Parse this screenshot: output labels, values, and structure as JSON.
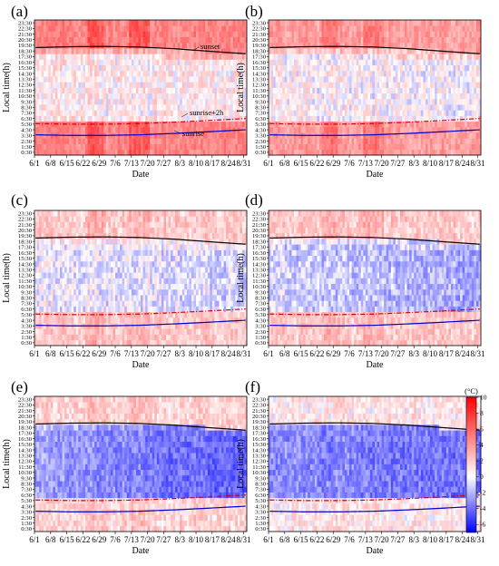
{
  "chart_data": {
    "type": "heatmap",
    "xlabel": "Date",
    "ylabel": "Local time(h)",
    "x_ticks": [
      "6/1",
      "6/8",
      "6/15",
      "6/22",
      "6/29",
      "7/6",
      "7/13",
      "7/20",
      "7/27",
      "8/3",
      "8/10",
      "8/17",
      "8/24",
      "8/31"
    ],
    "y_ticks": [
      "0:30",
      "1:30",
      "2:30",
      "3:30",
      "4:30",
      "5:30",
      "6:30",
      "7:30",
      "8:30",
      "9:30",
      "10:30",
      "11:30",
      "12:30",
      "13:30",
      "14:30",
      "15:30",
      "16:30",
      "17:30",
      "18:30",
      "19:30",
      "20:30",
      "21:30",
      "22:30",
      "23:30"
    ],
    "x_range_days": [
      0,
      91
    ],
    "y_range_hours": [
      0,
      24
    ],
    "colorbar": {
      "label": "(°C)",
      "min": -7,
      "max": 10,
      "ticks": [
        10,
        8,
        6,
        4,
        2,
        0,
        -2,
        -4,
        -6
      ],
      "colors": [
        "#0000ff",
        "#ffffff",
        "#ff0000"
      ]
    },
    "reference_lines": {
      "sunset": {
        "color": "#000000",
        "style": "solid",
        "hours": [
          19.1,
          19.25,
          19.3,
          19.2,
          18.9,
          18.45,
          18.0
        ]
      },
      "sunrise2": {
        "color": "#cc0000",
        "style": "dash-dot",
        "hours": [
          5.6,
          5.5,
          5.5,
          5.6,
          5.85,
          6.15,
          6.5
        ]
      },
      "sunrise": {
        "color": "#0000cc",
        "style": "solid",
        "hours": [
          3.6,
          3.5,
          3.5,
          3.6,
          3.85,
          4.15,
          4.5
        ]
      },
      "day_index": [
        0,
        15,
        30,
        45,
        60,
        75,
        91
      ]
    },
    "annotations": {
      "sunset": "sunset",
      "sunrise2": "sunrise+2h",
      "sunrise": "sunrise"
    },
    "panels": [
      {
        "label": "(a)",
        "night_bias": 4.0,
        "day_bias": 0.5,
        "day_trend": 0.0,
        "show_annotations": true
      },
      {
        "label": "(b)",
        "night_bias": 3.0,
        "day_bias": 0.2,
        "day_trend": -0.3,
        "show_annotations": false
      },
      {
        "label": "(c)",
        "night_bias": 1.5,
        "day_bias": -0.2,
        "day_trend": -0.6,
        "show_annotations": false
      },
      {
        "label": "(d)",
        "night_bias": 1.5,
        "day_bias": -0.8,
        "day_trend": -1.2,
        "show_annotations": false
      },
      {
        "label": "(e)",
        "night_bias": 1.2,
        "day_bias": -2.0,
        "day_trend": -2.0,
        "show_annotations": false
      },
      {
        "label": "(f)",
        "night_bias": 0.5,
        "day_bias": -2.5,
        "day_trend": -1.0,
        "show_annotations": false
      }
    ]
  }
}
